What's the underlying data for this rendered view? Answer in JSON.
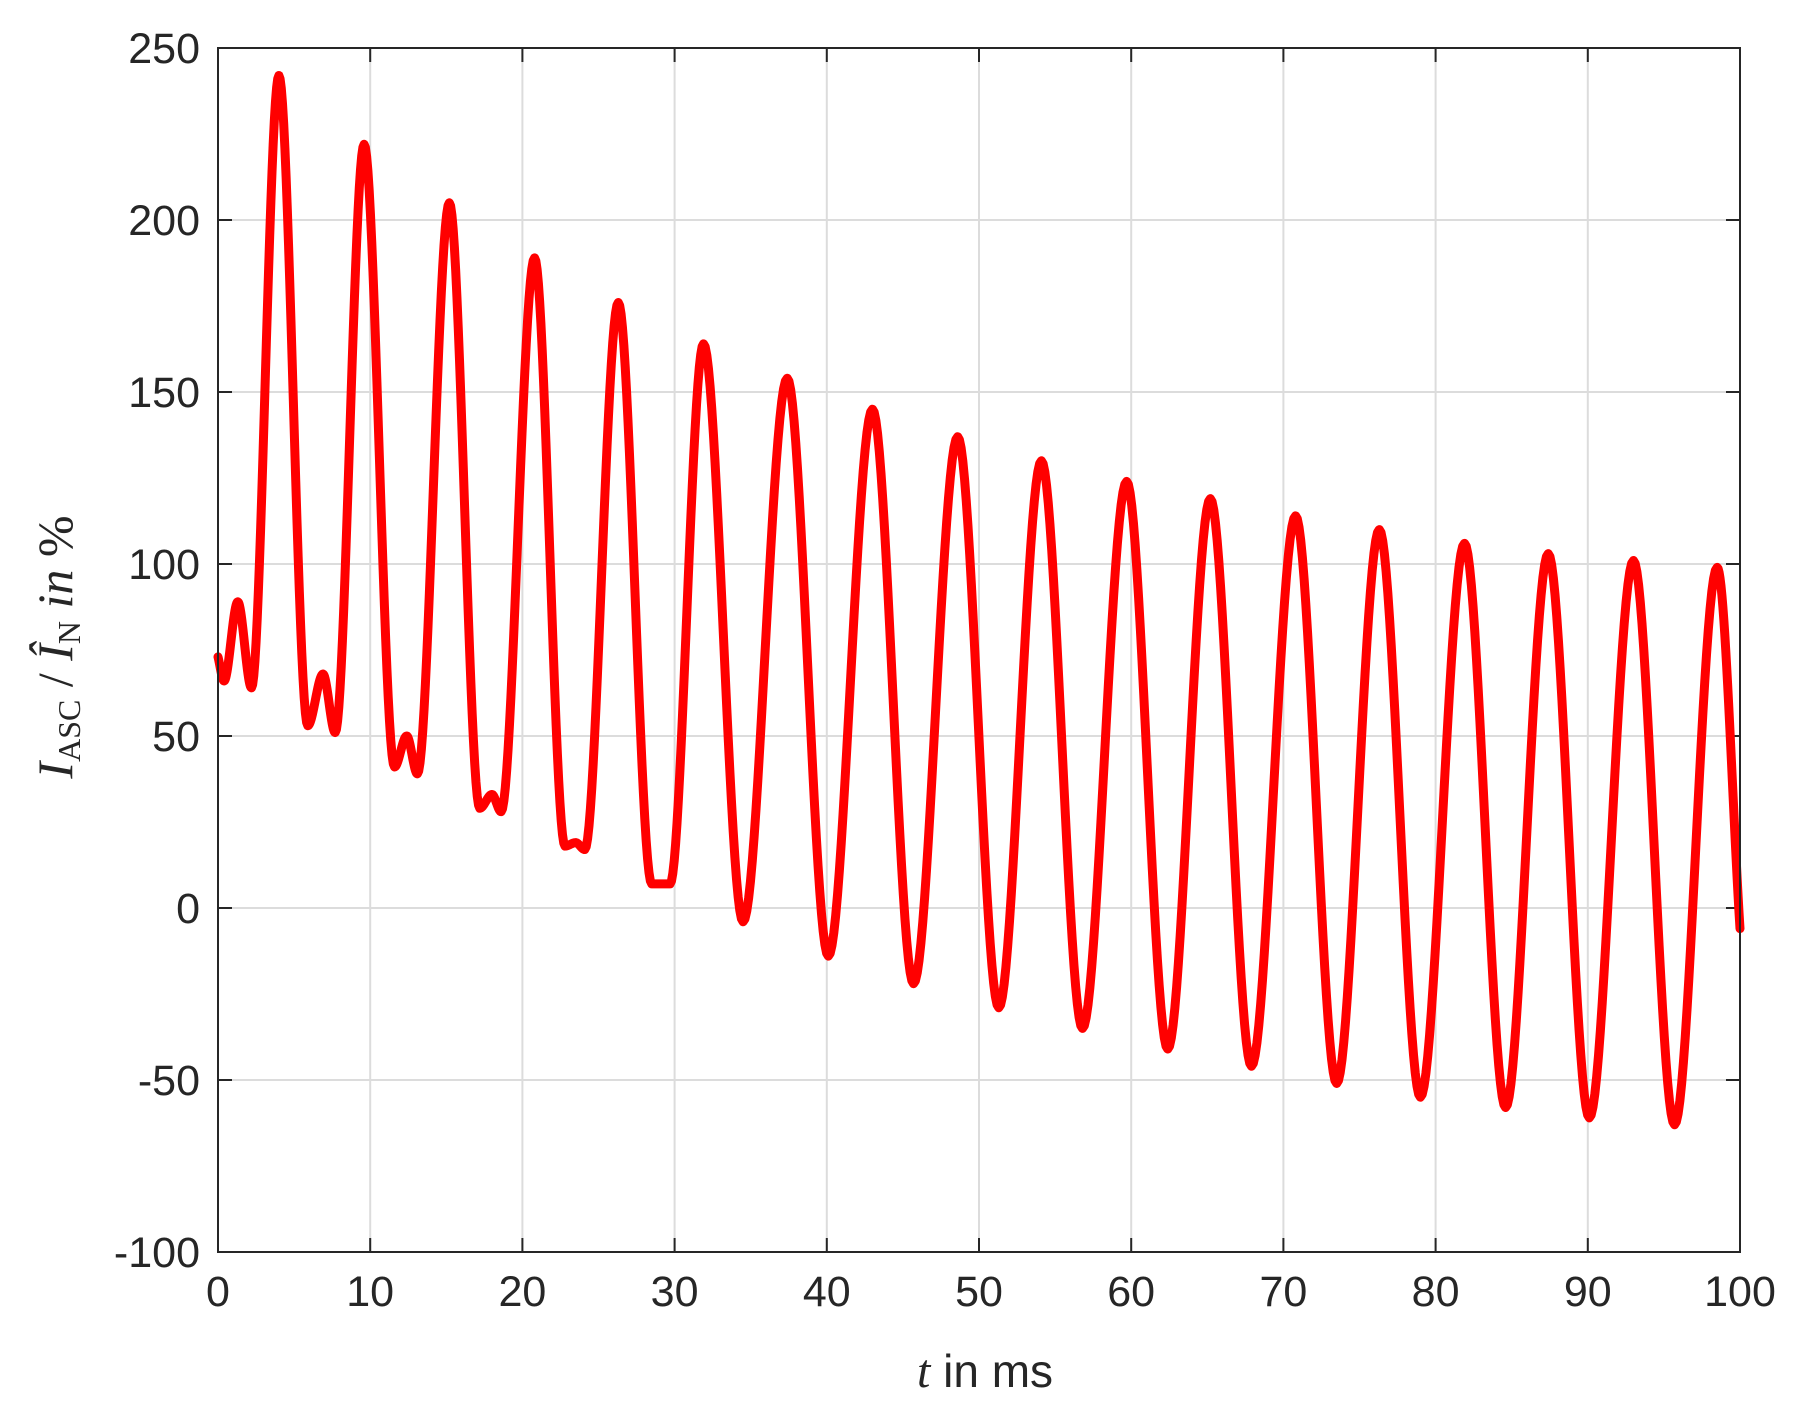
{
  "chart_data": {
    "type": "line",
    "title": "",
    "xlabel": {
      "var": "t",
      "rest": " in ms"
    },
    "ylabel": {
      "I": "I",
      "sub1": "ASC",
      "slash": " / ",
      "Ihat": "Î",
      "sub2": "N",
      "in": " in ",
      "unit": "%"
    },
    "xlim": [
      0,
      100
    ],
    "ylim": [
      -100,
      250
    ],
    "xticks": [
      0,
      10,
      20,
      30,
      40,
      50,
      60,
      70,
      80,
      90,
      100
    ],
    "yticks": [
      -100,
      -50,
      0,
      50,
      100,
      150,
      200,
      250
    ],
    "xtick_labels": [
      "0",
      "10",
      "20",
      "30",
      "40",
      "50",
      "60",
      "70",
      "80",
      "90",
      "100"
    ],
    "ytick_labels": [
      "-100",
      "-50",
      "0",
      "50",
      "100",
      "150",
      "200",
      "250"
    ],
    "grid": true,
    "line_color": "#ff0000",
    "series": [
      {
        "x": [
          0,
          0.4,
          1.3,
          2.2,
          4.0,
          5.9,
          6.9,
          7.7,
          9.6,
          11.6,
          12.4,
          13.1,
          15.2,
          17.2,
          18.0,
          18.6,
          20.8,
          22.8,
          23.5,
          24.1,
          26.3,
          28.5,
          29.1,
          29.7,
          31.9,
          34.5,
          37.4,
          40.1,
          43.0,
          45.7,
          48.6,
          51.3,
          54.1,
          56.8,
          59.7,
          62.4,
          65.2,
          67.9,
          70.8,
          73.5,
          76.3,
          79.0,
          81.9,
          84.6,
          87.4,
          90.1,
          93.0,
          95.7,
          98.5,
          100
        ],
        "y": [
          73,
          66,
          89,
          64,
          242,
          53,
          68,
          51,
          222,
          41,
          50,
          39,
          205,
          29,
          33,
          28,
          189,
          18,
          19,
          17,
          176,
          7,
          7,
          7,
          164,
          -4,
          154,
          -14,
          145,
          -22,
          137,
          -29,
          130,
          -35,
          124,
          -41,
          119,
          -46,
          114,
          -51,
          110,
          -55,
          106,
          -58,
          103,
          -61,
          101,
          -63,
          99,
          -6
        ]
      }
    ]
  }
}
